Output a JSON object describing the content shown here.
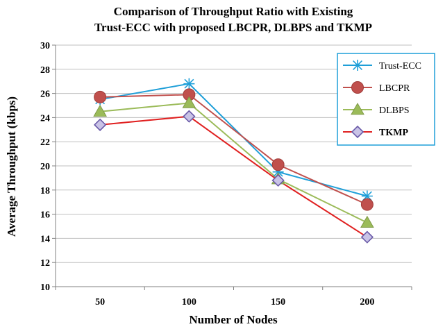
{
  "chart_data": {
    "type": "line",
    "title_lines": [
      "Comparison of Throughput Ratio with Existing",
      "Trust-ECC with proposed LBCPR, DLBPS and TKMP"
    ],
    "xlabel": "Number of Nodes",
    "ylabel": "Average Throughput  (kbps)",
    "categories": [
      "50",
      "100",
      "150",
      "200"
    ],
    "ylim": [
      10,
      30
    ],
    "yticks": [
      "10",
      "12",
      "14",
      "16",
      "18",
      "20",
      "22",
      "24",
      "26",
      "28",
      "30"
    ],
    "grid": true,
    "legend_position": "top-right",
    "series": [
      {
        "name": "Trust-ECC",
        "values": [
          25.5,
          26.8,
          19.5,
          17.5
        ],
        "color": "#1f9fd8",
        "marker": "star"
      },
      {
        "name": "LBCPR",
        "values": [
          25.7,
          25.9,
          20.1,
          16.8
        ],
        "color": "#c0504d",
        "marker": "circle"
      },
      {
        "name": "DLBPS",
        "values": [
          24.5,
          25.2,
          18.9,
          15.3
        ],
        "color": "#9bbb59",
        "marker": "triangle"
      },
      {
        "name": "TKMP",
        "values": [
          23.4,
          24.1,
          18.8,
          14.1
        ],
        "color": "#e02020",
        "marker": "diamond",
        "marker_fill": "#c9c3e6",
        "marker_stroke": "#6a5aa8",
        "bold_label": true
      }
    ]
  }
}
